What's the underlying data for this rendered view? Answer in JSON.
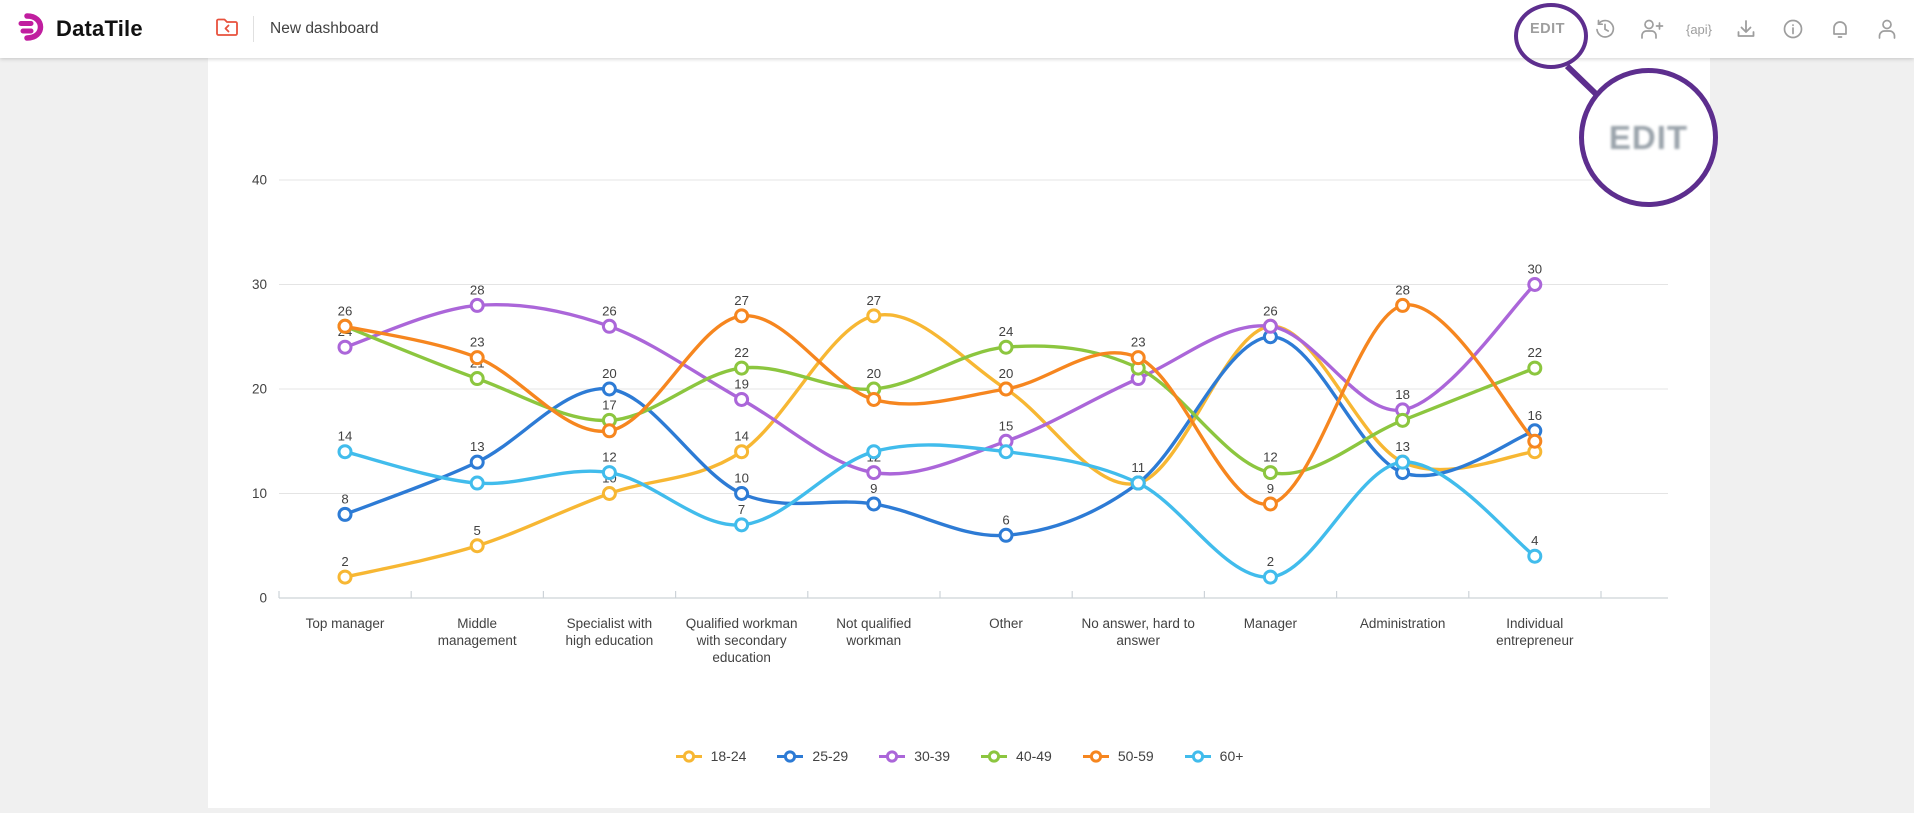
{
  "header": {
    "logo_text": "DataTile",
    "dashboard_title": "New dashboard",
    "edit_label": "EDIT",
    "api_icon_text": "{api}",
    "icons": [
      "folder-back-icon",
      "history-icon",
      "add-user-icon",
      "api-icon",
      "download-icon",
      "info-icon",
      "notifications-icon",
      "user-icon"
    ]
  },
  "annotation": {
    "magnified_edit_label": "EDIT",
    "color": "#5D2E8E"
  },
  "colors": {
    "page_background": "#F0F0F0",
    "card_background": "#FFFFFF",
    "grid_line": "#E4E4E4",
    "axis_line": "#CDD3D8",
    "axis_text": "#424242",
    "icon_gray": "#9E9E9E",
    "folder_icon": "#E8513D",
    "logo_magenta": "#C01E9F"
  },
  "chart_data": {
    "type": "line",
    "smooth": true,
    "grid": true,
    "legend_position": "bottom",
    "ylim": [
      0,
      40
    ],
    "yticks": [
      0,
      10,
      20,
      30,
      40
    ],
    "categories": [
      "Top manager",
      "Middle management",
      "Specialist with high education",
      "Qualified workman with secondary education",
      "Not qualified workman",
      "Other",
      "No answer, hard to answer",
      "Manager",
      "Administration",
      "Individual entrepreneur"
    ],
    "category_lines": [
      [
        "Top manager"
      ],
      [
        "Middle",
        "management"
      ],
      [
        "Specialist with",
        "high education"
      ],
      [
        "Qualified workman",
        "with secondary",
        "education"
      ],
      [
        "Not qualified",
        "workman"
      ],
      [
        "Other"
      ],
      [
        "No answer, hard to",
        "answer"
      ],
      [
        "Manager"
      ],
      [
        "Administration"
      ],
      [
        "Individual",
        "entrepreneur"
      ]
    ],
    "series": [
      {
        "name": "18-24",
        "color": "#F7B733",
        "values": [
          2,
          5,
          10,
          14,
          27,
          20,
          11,
          26,
          13,
          14
        ],
        "labels_shown": [
          1,
          1,
          1,
          1,
          1,
          0,
          0,
          0,
          0,
          1
        ]
      },
      {
        "name": "25-29",
        "color": "#2D7BD5",
        "values": [
          8,
          13,
          20,
          10,
          9,
          6,
          11,
          25,
          12,
          16
        ],
        "labels_shown": [
          1,
          1,
          1,
          1,
          1,
          1,
          1,
          0,
          0,
          1
        ]
      },
      {
        "name": "30-39",
        "color": "#AB66D9",
        "values": [
          24,
          28,
          26,
          19,
          12,
          15,
          21,
          26,
          18,
          30
        ],
        "labels_shown": [
          1,
          1,
          1,
          1,
          1,
          1,
          1,
          1,
          1,
          1
        ]
      },
      {
        "name": "40-49",
        "color": "#8CC63F",
        "values": [
          26,
          21,
          17,
          22,
          20,
          24,
          22,
          12,
          17,
          22
        ],
        "labels_shown": [
          0,
          1,
          1,
          1,
          1,
          1,
          0,
          1,
          0,
          1
        ]
      },
      {
        "name": "50-59",
        "color": "#F6861F",
        "values": [
          26,
          23,
          16,
          27,
          19,
          20,
          23,
          9,
          28,
          15
        ],
        "labels_shown": [
          1,
          1,
          0,
          1,
          0,
          1,
          1,
          1,
          1,
          0
        ]
      },
      {
        "name": "60+",
        "color": "#41BCEC",
        "values": [
          14,
          11,
          12,
          7,
          14,
          14,
          11,
          2,
          13,
          4
        ],
        "labels_shown": [
          1,
          0,
          1,
          1,
          0,
          0,
          0,
          1,
          1,
          1
        ]
      }
    ]
  }
}
